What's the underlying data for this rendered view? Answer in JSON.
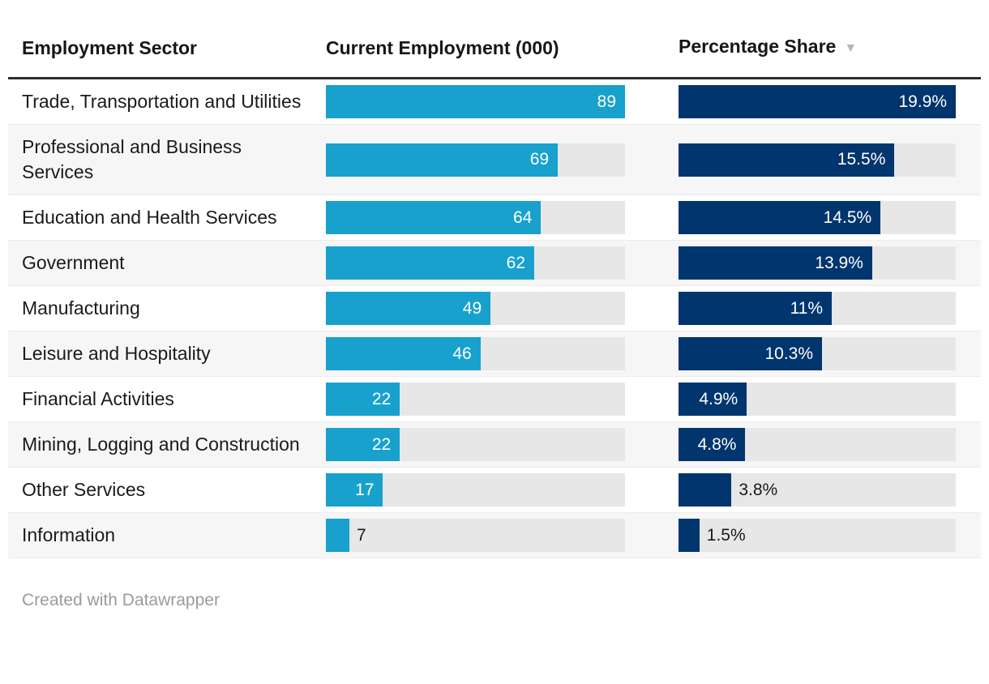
{
  "colors": {
    "employment_bar": "#18a1cd",
    "share_bar": "#00356e",
    "bar_track": "#e7e7e7",
    "alt_row_bg": "#f6f6f6",
    "header_rule": "#2e2e2e",
    "text": "#1a1a1a",
    "credit_text": "#9b9b9b",
    "sort_icon": "#b8b8b8"
  },
  "table": {
    "columns": [
      {
        "label": "Employment Sector"
      },
      {
        "label": "Current Employment (000)"
      },
      {
        "label": "Percentage Share",
        "sort_icon": "▼",
        "sorted": "desc"
      }
    ],
    "max_employment": 89,
    "max_share": 19.9,
    "rows": [
      {
        "sector": "Trade, Transportation and Utilities",
        "employment": 89,
        "employment_label": "89",
        "employment_label_inside": true,
        "share": 19.9,
        "share_label": "19.9%",
        "share_label_inside": true
      },
      {
        "sector": "Professional and Business Services",
        "employment": 69,
        "employment_label": "69",
        "employment_label_inside": true,
        "share": 15.5,
        "share_label": "15.5%",
        "share_label_inside": true
      },
      {
        "sector": "Education and Health Services",
        "employment": 64,
        "employment_label": "64",
        "employment_label_inside": true,
        "share": 14.5,
        "share_label": "14.5%",
        "share_label_inside": true
      },
      {
        "sector": "Government",
        "employment": 62,
        "employment_label": "62",
        "employment_label_inside": true,
        "share": 13.9,
        "share_label": "13.9%",
        "share_label_inside": true
      },
      {
        "sector": "Manufacturing",
        "employment": 49,
        "employment_label": "49",
        "employment_label_inside": true,
        "share": 11,
        "share_label": "11%",
        "share_label_inside": true
      },
      {
        "sector": "Leisure and Hospitality",
        "employment": 46,
        "employment_label": "46",
        "employment_label_inside": true,
        "share": 10.3,
        "share_label": "10.3%",
        "share_label_inside": true
      },
      {
        "sector": "Financial Activities",
        "employment": 22,
        "employment_label": "22",
        "employment_label_inside": true,
        "share": 4.9,
        "share_label": "4.9%",
        "share_label_inside": true
      },
      {
        "sector": "Mining, Logging and Construction",
        "employment": 22,
        "employment_label": "22",
        "employment_label_inside": true,
        "share": 4.8,
        "share_label": "4.8%",
        "share_label_inside": true
      },
      {
        "sector": "Other Services",
        "employment": 17,
        "employment_label": "17",
        "employment_label_inside": true,
        "share": 3.8,
        "share_label": "3.8%",
        "share_label_inside": false
      },
      {
        "sector": "Information",
        "employment": 7,
        "employment_label": "7",
        "employment_label_inside": false,
        "share": 1.5,
        "share_label": "1.5%",
        "share_label_inside": false
      }
    ]
  },
  "footer": {
    "credit": "Created with Datawrapper"
  },
  "chart_data": {
    "type": "table",
    "title": "",
    "columns": [
      "Employment Sector",
      "Current Employment (000)",
      "Percentage Share"
    ],
    "categories": [
      "Trade, Transportation and Utilities",
      "Professional and Business Services",
      "Education and Health Services",
      "Government",
      "Manufacturing",
      "Leisure and Hospitality",
      "Financial Activities",
      "Mining, Logging and Construction",
      "Other Services",
      "Information"
    ],
    "series": [
      {
        "name": "Current Employment (000)",
        "values": [
          89,
          69,
          64,
          62,
          49,
          46,
          22,
          22,
          17,
          7
        ]
      },
      {
        "name": "Percentage Share",
        "values": [
          19.9,
          15.5,
          14.5,
          13.9,
          11,
          10.3,
          4.9,
          4.8,
          3.8,
          1.5
        ]
      }
    ],
    "bar_scale": {
      "employment_max": 89,
      "share_max": 19.9
    },
    "sort": {
      "column": "Percentage Share",
      "direction": "desc"
    },
    "legend_position": "none",
    "grid": false
  }
}
